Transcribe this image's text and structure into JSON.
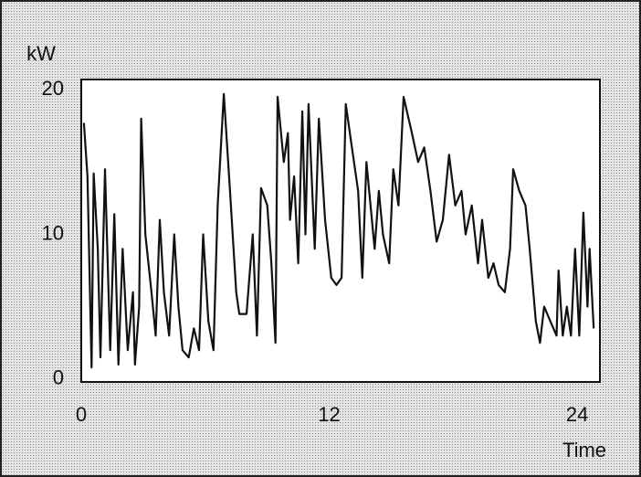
{
  "chart_data": {
    "type": "line",
    "y_label": "kW",
    "x_label": "Time",
    "xlim": [
      0,
      25.1
    ],
    "xticks": [
      0,
      12,
      24
    ],
    "ylim": [
      -0.2,
      20.7
    ],
    "yticks": [
      0,
      10,
      20
    ],
    "grid": false,
    "series": [
      {
        "color": "#111111",
        "x": [
          0.13,
          0.3,
          0.5,
          0.6,
          0.8,
          0.93,
          1.15,
          1.4,
          1.6,
          1.8,
          2.0,
          2.25,
          2.5,
          2.6,
          2.8,
          2.9,
          3.1,
          3.4,
          3.6,
          3.8,
          4.0,
          4.25,
          4.5,
          4.7,
          4.9,
          5.2,
          5.45,
          5.7,
          5.9,
          6.15,
          6.4,
          6.6,
          6.9,
          7.2,
          7.5,
          7.65,
          8.0,
          8.3,
          8.5,
          8.7,
          9.0,
          9.2,
          9.4,
          9.5,
          9.8,
          10.0,
          10.1,
          10.3,
          10.5,
          10.7,
          10.85,
          11.0,
          11.3,
          11.5,
          11.8,
          12.1,
          12.35,
          12.6,
          12.8,
          13.1,
          13.4,
          13.6,
          13.8,
          14.0,
          14.2,
          14.4,
          14.6,
          14.9,
          15.1,
          15.35,
          15.6,
          16.0,
          16.3,
          16.6,
          16.9,
          17.2,
          17.5,
          17.8,
          18.1,
          18.4,
          18.6,
          18.9,
          19.2,
          19.4,
          19.7,
          19.95,
          20.2,
          20.5,
          20.75,
          20.9,
          21.2,
          21.5,
          21.7,
          22.0,
          22.2,
          22.4,
          22.7,
          23.0,
          23.1,
          23.3,
          23.5,
          23.7,
          23.9,
          24.1,
          24.3,
          24.5,
          24.6,
          24.8
        ],
        "values": [
          17.7,
          14,
          0.8,
          14.2,
          9,
          1.5,
          14.5,
          2,
          11.4,
          1,
          9,
          2,
          6,
          1,
          5,
          18,
          10,
          6,
          3,
          11,
          6,
          3,
          10,
          5,
          2,
          1.5,
          3.5,
          2,
          10,
          4,
          2,
          12,
          19.7,
          13,
          6,
          4.5,
          4.5,
          10,
          3,
          13.2,
          12,
          8,
          2.5,
          19.5,
          15,
          17,
          11,
          14,
          8,
          18.5,
          10,
          19,
          9,
          18,
          11,
          7,
          6.5,
          7,
          19,
          16,
          13,
          7,
          15,
          12,
          9,
          13,
          10,
          8,
          14.5,
          12,
          19.5,
          17,
          15,
          16,
          13,
          9.5,
          11,
          15.5,
          12,
          13,
          10,
          12,
          8,
          11,
          7,
          8,
          6.5,
          6,
          9,
          14.5,
          13,
          12,
          9,
          4,
          2.5,
          5,
          4,
          3,
          7.5,
          3,
          5,
          3,
          9,
          3,
          11.5,
          5,
          9,
          3.5
        ]
      }
    ]
  }
}
